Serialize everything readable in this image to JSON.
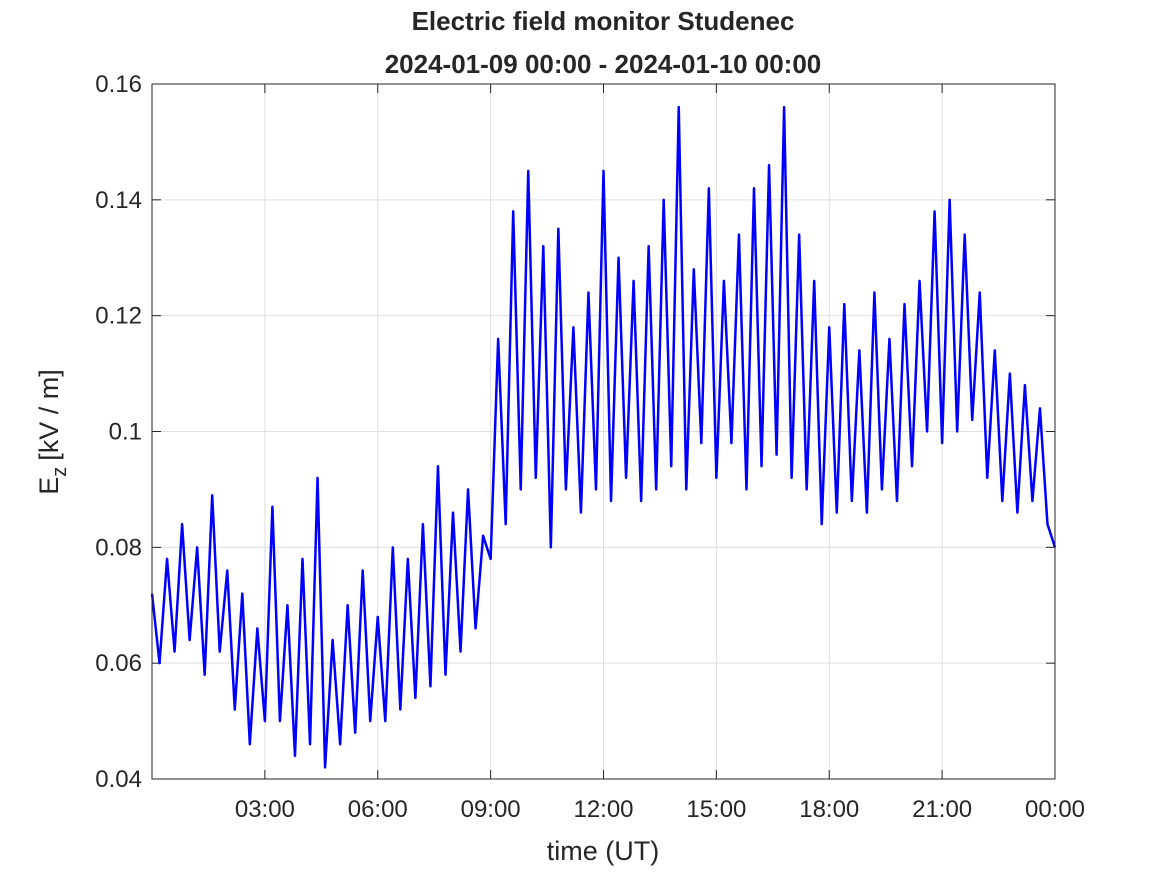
{
  "chart_data": {
    "type": "line",
    "title": "Electric field monitor Studenec",
    "subtitle": "2024-01-09 00:00 - 2024-01-10 00:00",
    "xlabel": "time (UT)",
    "ylabel": "E",
    "ylabel_sub": "z",
    "ylabel_unit": "[kV / m]",
    "xlim": [
      0,
      24
    ],
    "xticks": [
      {
        "value": 3,
        "label": "03:00"
      },
      {
        "value": 6,
        "label": "06:00"
      },
      {
        "value": 9,
        "label": "09:00"
      },
      {
        "value": 12,
        "label": "12:00"
      },
      {
        "value": 15,
        "label": "15:00"
      },
      {
        "value": 18,
        "label": "18:00"
      },
      {
        "value": 21,
        "label": "21:00"
      },
      {
        "value": 24,
        "label": "00:00"
      }
    ],
    "ylim": [
      0.04,
      0.16
    ],
    "yticks": [
      0.04,
      0.06,
      0.08,
      0.1,
      0.12,
      0.14,
      0.16
    ],
    "grid": true,
    "x": [
      0,
      0.2,
      0.4,
      0.6,
      0.8,
      1,
      1.2,
      1.4,
      1.6,
      1.8,
      2,
      2.2,
      2.4,
      2.6,
      2.8,
      3,
      3.2,
      3.4,
      3.6,
      3.8,
      4,
      4.2,
      4.4,
      4.6,
      4.8,
      5,
      5.2,
      5.4,
      5.6,
      5.8,
      6,
      6.2,
      6.4,
      6.6,
      6.8,
      7,
      7.2,
      7.4,
      7.6,
      7.8,
      8,
      8.2,
      8.4,
      8.6,
      8.8,
      9,
      9.2,
      9.4,
      9.6,
      9.8,
      10,
      10.2,
      10.4,
      10.6,
      10.8,
      11,
      11.2,
      11.4,
      11.6,
      11.8,
      12,
      12.2,
      12.4,
      12.6,
      12.8,
      13,
      13.2,
      13.4,
      13.6,
      13.8,
      14,
      14.2,
      14.4,
      14.6,
      14.8,
      15,
      15.2,
      15.4,
      15.6,
      15.8,
      16,
      16.2,
      16.4,
      16.6,
      16.8,
      17,
      17.2,
      17.4,
      17.6,
      17.8,
      18,
      18.2,
      18.4,
      18.6,
      18.8,
      19,
      19.2,
      19.4,
      19.6,
      19.8,
      20,
      20.2,
      20.4,
      20.6,
      20.8,
      21,
      21.2,
      21.4,
      21.6,
      21.8,
      22,
      22.2,
      22.4,
      22.6,
      22.8,
      23,
      23.2,
      23.4,
      23.6,
      23.8,
      24
    ],
    "series": [
      {
        "color": "#0000ff",
        "values": [
          0.072,
          0.06,
          0.078,
          0.062,
          0.084,
          0.064,
          0.08,
          0.058,
          0.089,
          0.062,
          0.076,
          0.052,
          0.072,
          0.046,
          0.066,
          0.05,
          0.087,
          0.05,
          0.07,
          0.044,
          0.078,
          0.046,
          0.092,
          0.042,
          0.064,
          0.046,
          0.07,
          0.048,
          0.076,
          0.05,
          0.068,
          0.05,
          0.08,
          0.052,
          0.078,
          0.054,
          0.084,
          0.056,
          0.094,
          0.058,
          0.086,
          0.062,
          0.09,
          0.066,
          0.082,
          0.078,
          0.116,
          0.084,
          0.138,
          0.09,
          0.145,
          0.092,
          0.132,
          0.08,
          0.135,
          0.09,
          0.118,
          0.086,
          0.124,
          0.09,
          0.145,
          0.088,
          0.13,
          0.092,
          0.126,
          0.088,
          0.132,
          0.09,
          0.14,
          0.094,
          0.156,
          0.09,
          0.128,
          0.098,
          0.142,
          0.092,
          0.126,
          0.098,
          0.134,
          0.09,
          0.142,
          0.094,
          0.146,
          0.096,
          0.156,
          0.092,
          0.134,
          0.09,
          0.126,
          0.084,
          0.118,
          0.086,
          0.122,
          0.088,
          0.114,
          0.086,
          0.124,
          0.09,
          0.116,
          0.088,
          0.122,
          0.094,
          0.126,
          0.1,
          0.138,
          0.098,
          0.14,
          0.1,
          0.134,
          0.102,
          0.124,
          0.092,
          0.114,
          0.088,
          0.11,
          0.086,
          0.108,
          0.088,
          0.104,
          0.084,
          0.08
        ]
      }
    ]
  }
}
